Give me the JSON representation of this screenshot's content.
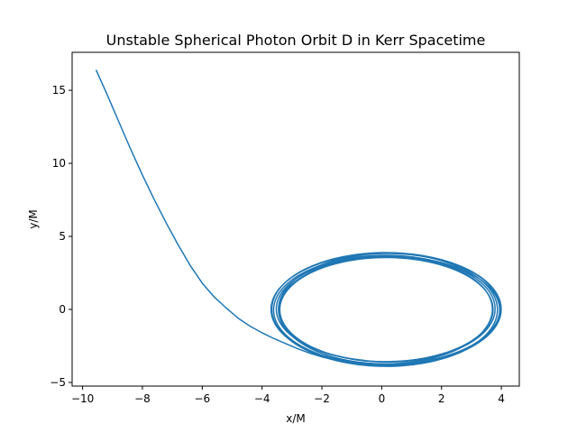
{
  "chart_data": {
    "type": "line",
    "title": "Unstable Spherical Photon Orbit D in Kerr Spacetime",
    "xlabel": "x/M",
    "ylabel": "y/M",
    "xlim": [
      -10.35,
      4.6
    ],
    "ylim": [
      -5.25,
      17.6
    ],
    "xticks": [
      -10,
      -8,
      -6,
      -4,
      -2,
      0,
      2,
      4
    ],
    "yticks": [
      -5,
      0,
      5,
      10,
      15
    ],
    "grid": false,
    "legend": "none",
    "series": [
      {
        "color": "#1f77b4",
        "infall": {
          "x": [
            -9.55,
            -9.2,
            -8.8,
            -8.4,
            -8.0,
            -7.6,
            -7.2,
            -6.8,
            -6.4,
            -6.0,
            -5.6,
            -5.2,
            -4.8,
            -4.4,
            -4.0,
            -3.6,
            -3.2,
            -2.8,
            -2.4,
            -2.0,
            -1.6,
            -1.2,
            -0.8
          ],
          "y": [
            16.4,
            14.8,
            12.9,
            11.0,
            9.2,
            7.5,
            5.9,
            4.4,
            3.0,
            1.8,
            0.85,
            0.1,
            -0.6,
            -1.15,
            -1.6,
            -2.0,
            -2.35,
            -2.7,
            -3.0,
            -3.25,
            -3.45,
            -3.6,
            -3.7
          ]
        },
        "orbit": {
          "x_center": 0.15,
          "y_center": 0.0,
          "x_radius_range": [
            3.55,
            3.85
          ],
          "y_radius_range": [
            3.55,
            3.9
          ],
          "loops": 7
        }
      }
    ]
  }
}
